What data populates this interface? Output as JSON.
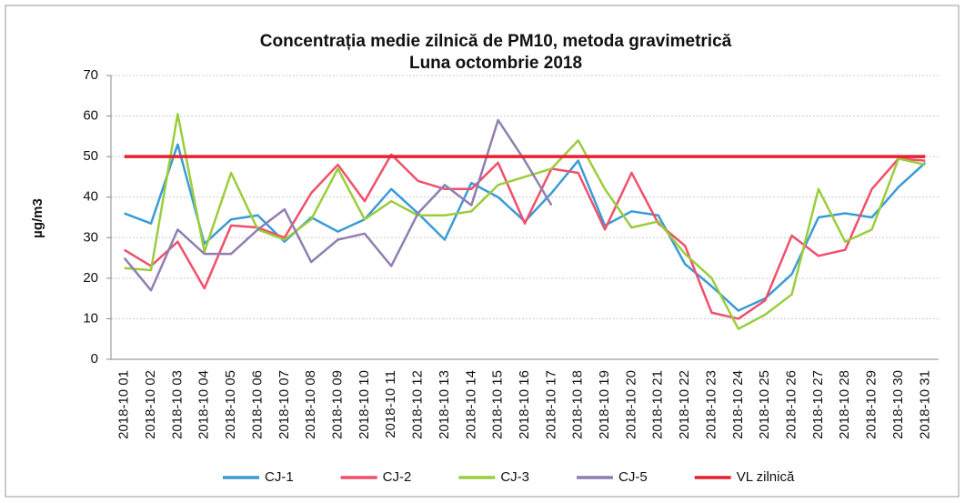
{
  "chart_data": {
    "type": "line",
    "title": "Concentrația medie zilnică de PM10,  metoda gravimetrică",
    "subtitle": "Luna octombrie 2018",
    "ylabel": "µg/m3",
    "categories": [
      "2018-10 01",
      "2018-10 02",
      "2018-10 03",
      "2018-10 04",
      "2018-10 05",
      "2018-10 06",
      "2018-10 07",
      "2018-10 08",
      "2018-10 09",
      "2018-10 10",
      "2018-10 11",
      "2018-10 12",
      "2018-10 13",
      "2018-10 14",
      "2018-10 15",
      "2018-10 16",
      "2018-10 17",
      "2018-10 18",
      "2018-10 19",
      "2018-10 20",
      "2018-10 21",
      "2018-10 22",
      "2018-10 23",
      "2018-10 24",
      "2018-10 25",
      "2018-10 26",
      "2018-10 27",
      "2018-10 28",
      "2018-10 29",
      "2018-10 30",
      "2018-10 31"
    ],
    "series": [
      {
        "name": "CJ-1",
        "color": "#3b9bd6",
        "values": [
          36,
          33.5,
          53,
          28.5,
          34.5,
          35.5,
          29,
          35,
          31.5,
          34.5,
          42,
          36,
          29.5,
          43.5,
          40,
          34,
          41,
          49,
          33,
          36.5,
          35.5,
          23.5,
          18,
          12,
          15,
          21,
          35,
          36,
          35,
          42.5,
          48.5
        ]
      },
      {
        "name": "CJ-2",
        "color": "#f0506a",
        "values": [
          27,
          23,
          29,
          17.5,
          33,
          32.5,
          30,
          41,
          48,
          39,
          50.5,
          44,
          42,
          42,
          48.5,
          33.5,
          47,
          46,
          32,
          46,
          33.5,
          28,
          11.5,
          10,
          14.5,
          30.5,
          25.5,
          27,
          42,
          49.5,
          49
        ]
      },
      {
        "name": "CJ-3",
        "color": "#9acd3c",
        "values": [
          22.5,
          22,
          60.5,
          26.5,
          46,
          32,
          29.5,
          34.5,
          47,
          34.5,
          39,
          35.5,
          35.5,
          36.5,
          43,
          45,
          47,
          54,
          42,
          32.5,
          34,
          26,
          20,
          7.5,
          11,
          16,
          42,
          29,
          32,
          49.5,
          48
        ]
      },
      {
        "name": "CJ-5",
        "color": "#8f7fb0",
        "values": [
          25,
          17,
          32,
          26,
          26,
          32,
          37,
          24,
          29.5,
          31,
          23,
          36,
          43,
          38,
          59,
          49,
          38,
          null,
          null,
          null,
          null,
          null,
          null,
          null,
          null,
          null,
          null,
          null,
          null,
          null,
          null
        ]
      },
      {
        "name": "VL zilnică",
        "color": "#e8202f",
        "values": [
          50,
          50,
          50,
          50,
          50,
          50,
          50,
          50,
          50,
          50,
          50,
          50,
          50,
          50,
          50,
          50,
          50,
          50,
          50,
          50,
          50,
          50,
          50,
          50,
          50,
          50,
          50,
          50,
          50,
          50,
          50
        ]
      }
    ],
    "ylim": [
      0,
      70
    ],
    "yticks": [
      0,
      10,
      20,
      30,
      40,
      50,
      60,
      70
    ],
    "grid": true,
    "legend": "bottom"
  }
}
